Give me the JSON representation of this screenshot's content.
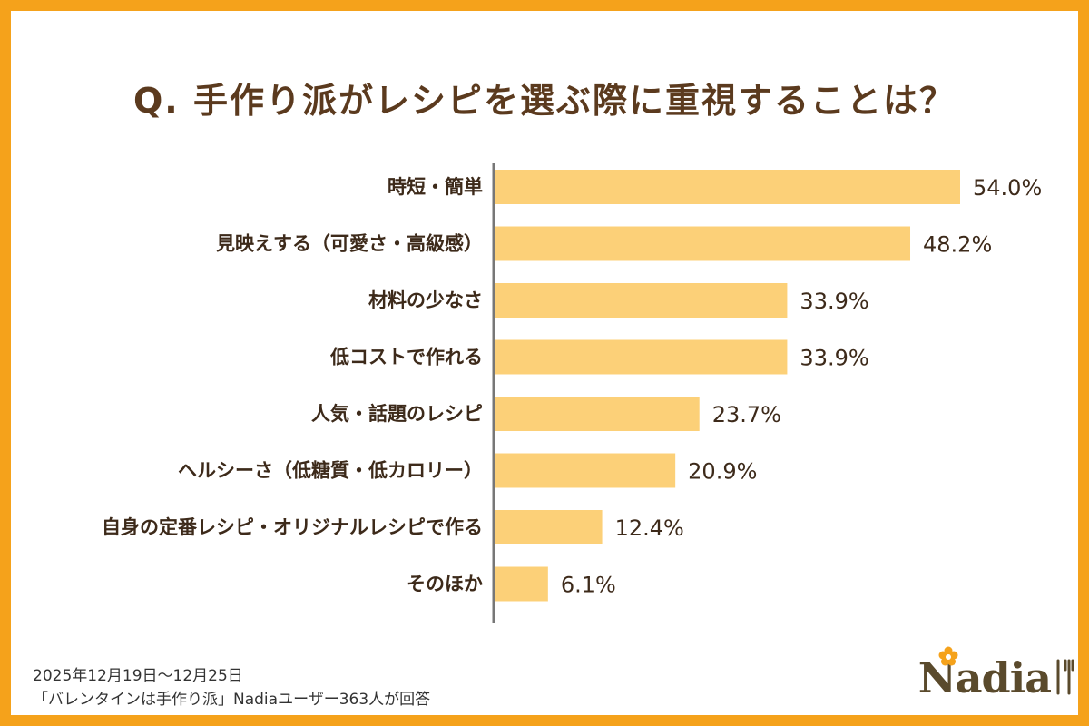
{
  "title": "Q. 手作り派がレシピを選ぶ際に重視することは？",
  "chart_data": {
    "type": "bar",
    "orientation": "horizontal",
    "categories": [
      "時短・簡単",
      "見映えする（可愛さ・高級感）",
      "材料の少なさ",
      "低コストで作れる",
      "人気・話題のレシピ",
      "ヘルシーさ（低糖質・低カロリー）",
      "自身の定番レシピ・オリジナルレシピで作る",
      "そのほか"
    ],
    "values": [
      54.0,
      48.2,
      33.9,
      33.9,
      23.7,
      20.9,
      12.4,
      6.1
    ],
    "value_labels": [
      "54.0%",
      "48.2%",
      "33.9%",
      "33.9%",
      "23.7%",
      "20.9%",
      "12.4%",
      "6.1%"
    ],
    "xlim": [
      0,
      60
    ],
    "bar_color": "#fcd078",
    "axis_color": "#777777"
  },
  "footer": {
    "period": "2025年12月19日〜12月25日",
    "source": "「バレンタインは手作り派」Nadiaユーザー363人が回答"
  },
  "logo": {
    "text": "Nadia"
  },
  "colors": {
    "frame": "#f5a21b",
    "title": "#5b3a1e"
  }
}
